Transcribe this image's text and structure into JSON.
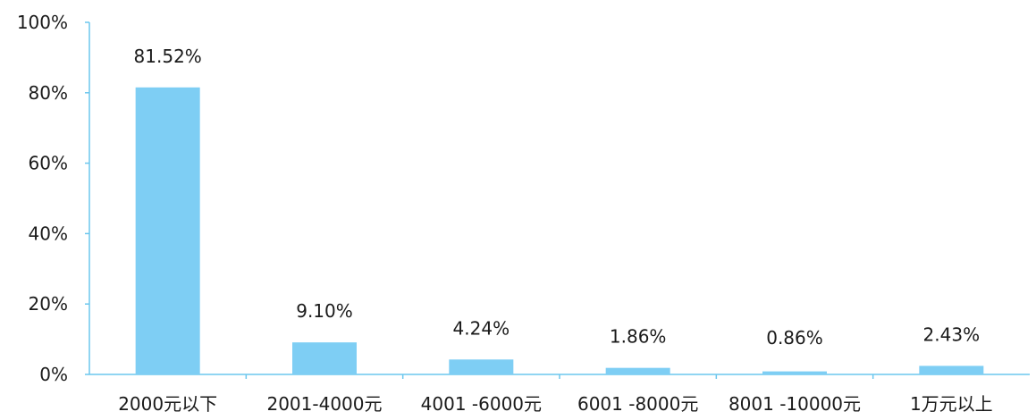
{
  "chart_data": {
    "type": "bar",
    "categories": [
      "2000元以下",
      "2001-4000元",
      "4001 -6000元",
      "6001 -8000元",
      "8001 -10000元",
      "1万元以上"
    ],
    "values": [
      81.52,
      9.1,
      4.24,
      1.86,
      0.86,
      2.43
    ],
    "data_labels": [
      "81.52%",
      "9.10%",
      "4.24%",
      "1.86%",
      "0.86%",
      "2.43%"
    ],
    "yticks": [
      "0%",
      "20%",
      "40%",
      "60%",
      "80%",
      "100%"
    ],
    "ylim": [
      0,
      100
    ],
    "grid": false,
    "bar_color": "#7ecef4",
    "axis_color": "#6cc7ee"
  }
}
